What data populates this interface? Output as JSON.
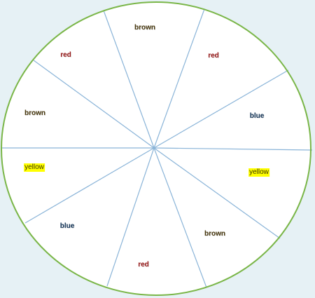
{
  "spinner": {
    "rim_color": "#7ab648",
    "divider_color": "#8ab4d8",
    "face_color": "#ffffff",
    "background_color": "#e6f1f5",
    "sectors": [
      {
        "label": "brown",
        "text_color": "#4a3a10",
        "highlight": null
      },
      {
        "label": "red",
        "text_color": "#9c1a1a",
        "highlight": null
      },
      {
        "label": "brown",
        "text_color": "#4a3a10",
        "highlight": null
      },
      {
        "label": "yellow",
        "text_color": "#3a3300",
        "highlight": "#ffff00"
      },
      {
        "label": "blue",
        "text_color": "#14365a",
        "highlight": null
      },
      {
        "label": "red",
        "text_color": "#9c1a1a",
        "highlight": null
      },
      {
        "label": "brown",
        "text_color": "#4a3a10",
        "highlight": null
      },
      {
        "label": "yellow",
        "text_color": "#3a3300",
        "highlight": "#ffff00"
      },
      {
        "label": "blue",
        "text_color": "#14365a",
        "highlight": null
      },
      {
        "label": "red",
        "text_color": "#9c1a1a",
        "highlight": null
      }
    ]
  }
}
